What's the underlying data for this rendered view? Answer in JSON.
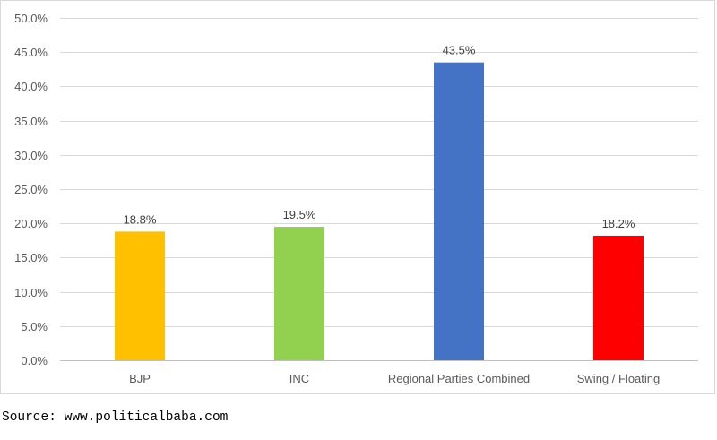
{
  "chart_data": {
    "type": "bar",
    "categories": [
      "BJP",
      "INC",
      "Regional Parties Combined",
      "Swing / Floating"
    ],
    "values": [
      18.8,
      19.5,
      43.5,
      18.2
    ],
    "data_labels": [
      "18.8%",
      "19.5%",
      "43.5%",
      "18.2%"
    ],
    "colors": [
      "#ffc000",
      "#92d050",
      "#4472c4",
      "#ff0000"
    ],
    "ylim": [
      0,
      50
    ],
    "yticks": [
      0,
      5,
      10,
      15,
      20,
      25,
      30,
      35,
      40,
      45,
      50
    ],
    "ytick_labels": [
      "0.0%",
      "5.0%",
      "10.0%",
      "15.0%",
      "20.0%",
      "25.0%",
      "30.0%",
      "35.0%",
      "40.0%",
      "45.0%",
      "50.0%"
    ],
    "grid": true,
    "legend": "none"
  },
  "source": "Source: www.politicalbaba.com"
}
